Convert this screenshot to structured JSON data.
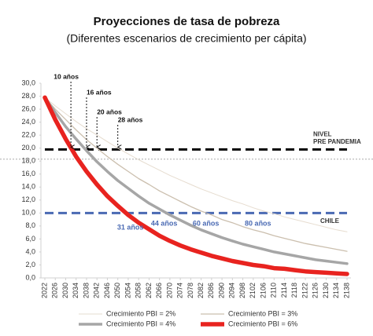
{
  "chart_data": {
    "type": "line",
    "title": "Proyecciones de tasa de pobreza",
    "subtitle": "(Diferentes escenarios de crecimiento per cápita)",
    "x": [
      2022,
      2026,
      2030,
      2034,
      2038,
      2042,
      2046,
      2050,
      2054,
      2058,
      2062,
      2066,
      2070,
      2074,
      2078,
      2082,
      2086,
      2090,
      2094,
      2098,
      2102,
      2106,
      2110,
      2114,
      2118,
      2122,
      2126,
      2130,
      2134,
      2138
    ],
    "xlim": [
      2022,
      2138
    ],
    "xticks": [
      2022,
      2026,
      2030,
      2034,
      2038,
      2042,
      2046,
      2050,
      2054,
      2058,
      2062,
      2066,
      2070,
      2074,
      2078,
      2082,
      2086,
      2090,
      2094,
      2098,
      2102,
      2106,
      2110,
      2114,
      2118,
      2122,
      2126,
      2130,
      2134,
      2138
    ],
    "ylim": [
      0,
      30
    ],
    "yticks": [
      {
        "value": 0,
        "label": "0,0"
      },
      {
        "value": 2,
        "label": "2,0"
      },
      {
        "value": 4,
        "label": "4,0"
      },
      {
        "value": 6,
        "label": "6,0"
      },
      {
        "value": 8,
        "label": "8,0"
      },
      {
        "value": 10,
        "label": "10,0"
      },
      {
        "value": 12,
        "label": "12,0"
      },
      {
        "value": 14,
        "label": "14,0"
      },
      {
        "value": 16,
        "label": "16,0"
      },
      {
        "value": 18,
        "label": "18,0"
      },
      {
        "value": 20,
        "label": "20,0"
      },
      {
        "value": 22,
        "label": "22,0"
      },
      {
        "value": 24,
        "label": "24,0"
      },
      {
        "value": 26,
        "label": "26,0"
      },
      {
        "value": 28,
        "label": "28,0"
      },
      {
        "value": 30,
        "label": "30,0"
      }
    ],
    "series": [
      {
        "name": "Crecimiento PBI = 2%",
        "color": "#e6dccf",
        "width": 1,
        "values": [
          27.8,
          26.5,
          25.3,
          24.1,
          23.0,
          22.0,
          21.0,
          20.0,
          19.1,
          18.2,
          17.4,
          16.6,
          15.8,
          15.1,
          14.4,
          13.7,
          13.1,
          12.5,
          11.9,
          11.4,
          10.8,
          10.3,
          9.9,
          9.4,
          9.0,
          8.6,
          8.2,
          7.8,
          7.4,
          7.1
        ]
      },
      {
        "name": "Crecimiento PBI = 3%",
        "color": "#cbbfae",
        "width": 1.3,
        "values": [
          27.8,
          26.0,
          24.4,
          22.8,
          21.3,
          20.0,
          18.7,
          17.5,
          16.4,
          15.3,
          14.4,
          13.4,
          12.6,
          11.8,
          11.0,
          10.3,
          9.7,
          9.0,
          8.5,
          7.9,
          7.4,
          7.0,
          6.5,
          6.1,
          5.7,
          5.3,
          5.0,
          4.7,
          4.4,
          4.1
        ]
      },
      {
        "name": "Crecimiento PBI = 4%",
        "color": "#a6a6a6",
        "width": 3.5,
        "values": [
          27.8,
          25.5,
          23.3,
          21.4,
          19.6,
          17.9,
          16.4,
          15.0,
          13.8,
          12.6,
          11.5,
          10.6,
          9.7,
          8.9,
          8.1,
          7.4,
          6.8,
          6.2,
          5.7,
          5.2,
          4.8,
          4.4,
          4.0,
          3.7,
          3.4,
          3.1,
          2.8,
          2.6,
          2.4,
          2.2
        ]
      },
      {
        "name": "Crecimiento PBI = 6%",
        "color": "#e8231f",
        "width": 5.5,
        "values": [
          27.8,
          24.4,
          21.4,
          18.7,
          16.4,
          14.4,
          12.6,
          11.1,
          9.7,
          8.5,
          7.5,
          6.5,
          5.7,
          5.0,
          4.4,
          3.9,
          3.4,
          3.0,
          2.6,
          2.3,
          2.0,
          1.8,
          1.5,
          1.4,
          1.2,
          1.0,
          0.9,
          0.8,
          0.7,
          0.6
        ]
      }
    ],
    "reference_lines": [
      {
        "value": 18.3,
        "color": "#aaaaaa",
        "style": "dotted"
      },
      {
        "value": 19.8,
        "color": "#000000",
        "style": "dashed",
        "label": [
          "NIVEL",
          "PRE PANDEMIA"
        ]
      },
      {
        "value": 10,
        "color": "#4a6ab3",
        "style": "dashed",
        "label": [
          "CHILE"
        ]
      }
    ],
    "annotations_top": [
      {
        "text": "10 años",
        "x": 2032
      },
      {
        "text": "16 años",
        "x": 2038
      },
      {
        "text": "20 años",
        "x": 2042
      },
      {
        "text": "28 años",
        "x": 2050
      }
    ],
    "annotations_bottom": [
      {
        "text": "31 años",
        "x": 2053
      },
      {
        "text": "44 años",
        "x": 2066
      },
      {
        "text": "60 años",
        "x": 2082
      },
      {
        "text": "80 años",
        "x": 2102
      }
    ]
  }
}
